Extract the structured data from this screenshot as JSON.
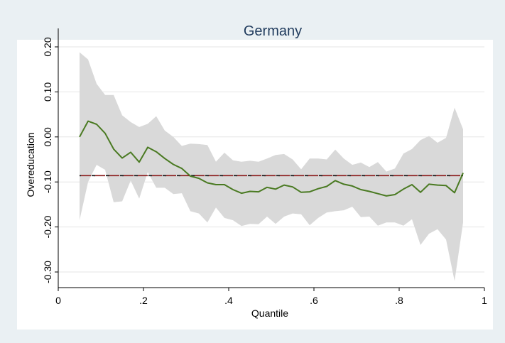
{
  "chart_data": {
    "type": "line",
    "title": "Germany",
    "xlabel": "Quantile",
    "ylabel": "Overeducation",
    "xlim": [
      0,
      1
    ],
    "ylim": [
      -0.3,
      0.2
    ],
    "x_ticks": [
      0,
      0.2,
      0.4,
      0.6,
      0.8,
      1
    ],
    "x_tick_labels": [
      "0",
      ".2",
      ".4",
      ".6",
      ".8",
      "1"
    ],
    "y_ticks": [
      -0.3,
      -0.2,
      -0.1,
      0.0,
      0.1,
      0.2
    ],
    "y_tick_labels": [
      "-0.30",
      "-0.20",
      "-0.10",
      "0.00",
      "0.10",
      "0.20"
    ],
    "grid": "horizontal",
    "reference_line": {
      "y": -0.086,
      "color": "#8b1a1a",
      "dash": "dashed"
    },
    "x": [
      0.05,
      0.07,
      0.09,
      0.11,
      0.13,
      0.15,
      0.17,
      0.19,
      0.21,
      0.23,
      0.25,
      0.27,
      0.29,
      0.31,
      0.33,
      0.35,
      0.37,
      0.39,
      0.41,
      0.43,
      0.45,
      0.47,
      0.49,
      0.51,
      0.53,
      0.55,
      0.57,
      0.59,
      0.61,
      0.63,
      0.65,
      0.67,
      0.69,
      0.71,
      0.73,
      0.75,
      0.77,
      0.79,
      0.81,
      0.83,
      0.85,
      0.87,
      0.89,
      0.91,
      0.93,
      0.95
    ],
    "series": [
      {
        "values": [
          0.0,
          0.035,
          0.028,
          0.008,
          -0.027,
          -0.047,
          -0.034,
          -0.056,
          -0.023,
          -0.033,
          -0.048,
          -0.061,
          -0.07,
          -0.087,
          -0.092,
          -0.102,
          -0.106,
          -0.106,
          -0.117,
          -0.125,
          -0.121,
          -0.122,
          -0.112,
          -0.116,
          -0.107,
          -0.111,
          -0.123,
          -0.122,
          -0.115,
          -0.11,
          -0.097,
          -0.105,
          -0.109,
          -0.117,
          -0.121,
          -0.126,
          -0.131,
          -0.128,
          -0.116,
          -0.106,
          -0.123,
          -0.105,
          -0.107,
          -0.108,
          -0.124,
          -0.08
        ],
        "color": "#4a7a22"
      }
    ],
    "confidence_band": {
      "upper": [
        0.188,
        0.172,
        0.118,
        0.093,
        0.093,
        0.048,
        0.033,
        0.022,
        0.029,
        0.046,
        0.014,
        0.0,
        -0.02,
        -0.015,
        -0.016,
        -0.018,
        -0.055,
        -0.035,
        -0.052,
        -0.055,
        -0.053,
        -0.055,
        -0.048,
        -0.04,
        -0.038,
        -0.05,
        -0.072,
        -0.048,
        -0.048,
        -0.05,
        -0.028,
        -0.048,
        -0.062,
        -0.057,
        -0.067,
        -0.056,
        -0.077,
        -0.07,
        -0.037,
        -0.027,
        -0.007,
        0.002,
        -0.013,
        -0.002,
        0.065,
        0.017
      ],
      "lower": [
        -0.185,
        -0.1,
        -0.062,
        -0.073,
        -0.145,
        -0.143,
        -0.097,
        -0.137,
        -0.078,
        -0.113,
        -0.113,
        -0.127,
        -0.125,
        -0.165,
        -0.17,
        -0.19,
        -0.157,
        -0.18,
        -0.185,
        -0.198,
        -0.193,
        -0.194,
        -0.177,
        -0.193,
        -0.177,
        -0.17,
        -0.172,
        -0.196,
        -0.18,
        -0.168,
        -0.165,
        -0.163,
        -0.155,
        -0.178,
        -0.177,
        -0.197,
        -0.19,
        -0.19,
        -0.197,
        -0.183,
        -0.24,
        -0.215,
        -0.205,
        -0.228,
        -0.32,
        -0.19
      ],
      "color": "#d9d9d9"
    }
  }
}
